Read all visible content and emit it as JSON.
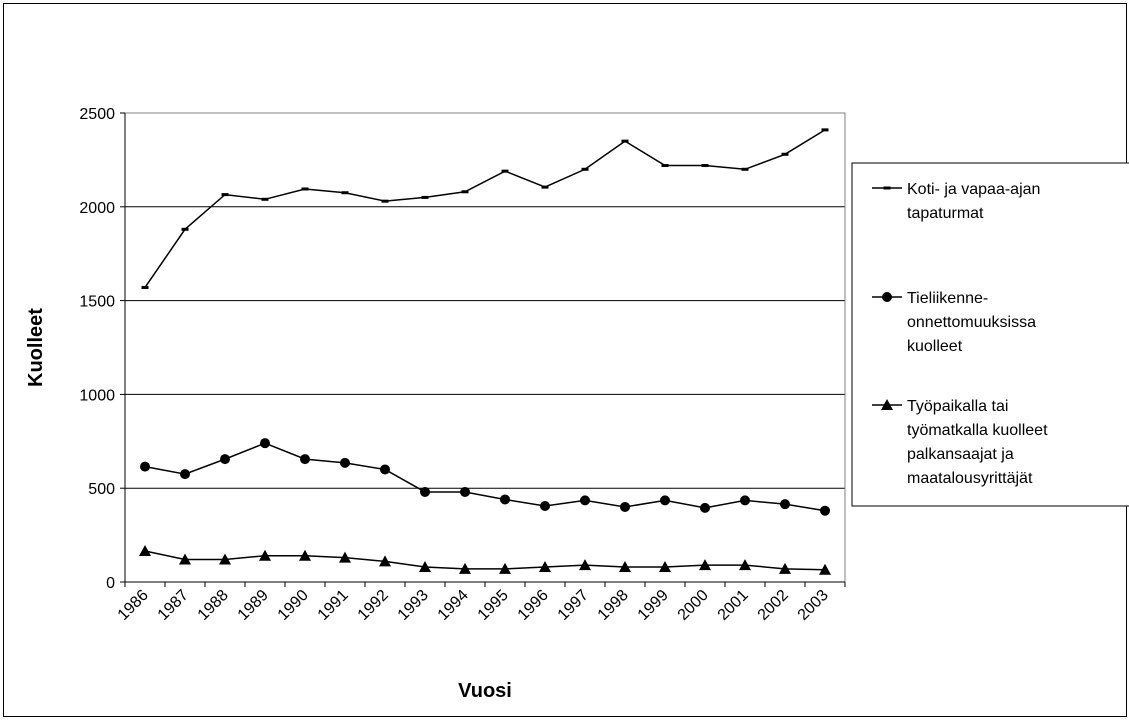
{
  "chart_data": {
    "type": "line",
    "title": "",
    "xlabel": "Vuosi",
    "ylabel": "Kuolleet",
    "ylim": [
      0,
      2500
    ],
    "yticks": [
      0,
      500,
      1000,
      1500,
      2000,
      2500
    ],
    "grid": true,
    "legend_position": "right",
    "categories": [
      "1986",
      "1987",
      "1988",
      "1989",
      "1990",
      "1991",
      "1992",
      "1993",
      "1994",
      "1995",
      "1996",
      "1997",
      "1998",
      "1999",
      "2000",
      "2001",
      "2002",
      "2003"
    ],
    "series": [
      {
        "name_lines": [
          "Koti- ja vapaa-ajan",
          "tapaturmat"
        ],
        "marker": "dash",
        "values": [
          1570,
          1880,
          2065,
          2040,
          2095,
          2075,
          2030,
          2050,
          2080,
          2190,
          2105,
          2200,
          2350,
          2220,
          2220,
          2200,
          2280,
          2410
        ]
      },
      {
        "name_lines": [
          "Tieliikenne-",
          "onnettomuuksissa",
          "kuolleet"
        ],
        "marker": "circle",
        "values": [
          615,
          575,
          655,
          740,
          655,
          635,
          600,
          480,
          480,
          440,
          405,
          435,
          400,
          435,
          395,
          435,
          415,
          380
        ]
      },
      {
        "name_lines": [
          "Työpaikalla tai",
          "työmatkalla kuolleet",
          "palkansaajat ja",
          "maatalousyrittäjät"
        ],
        "marker": "triangle",
        "values": [
          165,
          120,
          120,
          140,
          140,
          130,
          110,
          80,
          70,
          70,
          80,
          90,
          80,
          80,
          90,
          90,
          70,
          65
        ]
      }
    ]
  }
}
